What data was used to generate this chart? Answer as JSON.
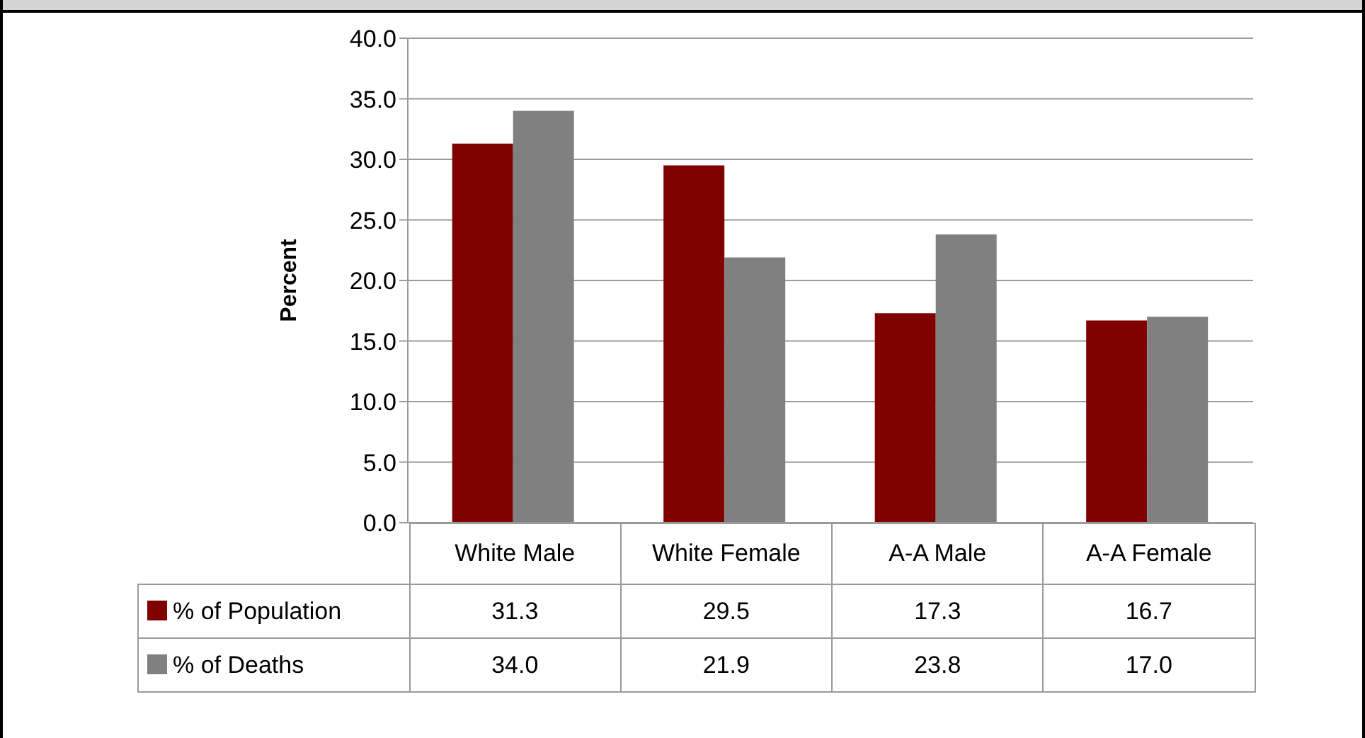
{
  "chart_data": {
    "type": "bar",
    "ylabel": "Percent",
    "categories": [
      "White Male",
      "White Female",
      "A-A Male",
      "A-A Female"
    ],
    "series": [
      {
        "name": "% of Population",
        "color": "#800000",
        "values": [
          31.3,
          29.5,
          17.3,
          16.7
        ],
        "value_labels": [
          "31.3",
          "29.5",
          "17.3",
          "16.7"
        ]
      },
      {
        "name": "% of Deaths",
        "color": "#808080",
        "values": [
          34.0,
          21.9,
          23.8,
          17.0
        ],
        "value_labels": [
          "34.0",
          "21.9",
          "23.8",
          "17.0"
        ]
      }
    ],
    "ylim": [
      0,
      40
    ],
    "yticks": [
      {
        "value": 0,
        "label": "0.0"
      },
      {
        "value": 5,
        "label": "5.0"
      },
      {
        "value": 10,
        "label": "10.0"
      },
      {
        "value": 15,
        "label": "15.0"
      },
      {
        "value": 20,
        "label": "20.0"
      },
      {
        "value": 25,
        "label": "25.0"
      },
      {
        "value": 30,
        "label": "30.0"
      },
      {
        "value": 35,
        "label": "35.0"
      },
      {
        "value": 40,
        "label": "40.0"
      }
    ],
    "grid": "y",
    "legend": "bottom"
  }
}
